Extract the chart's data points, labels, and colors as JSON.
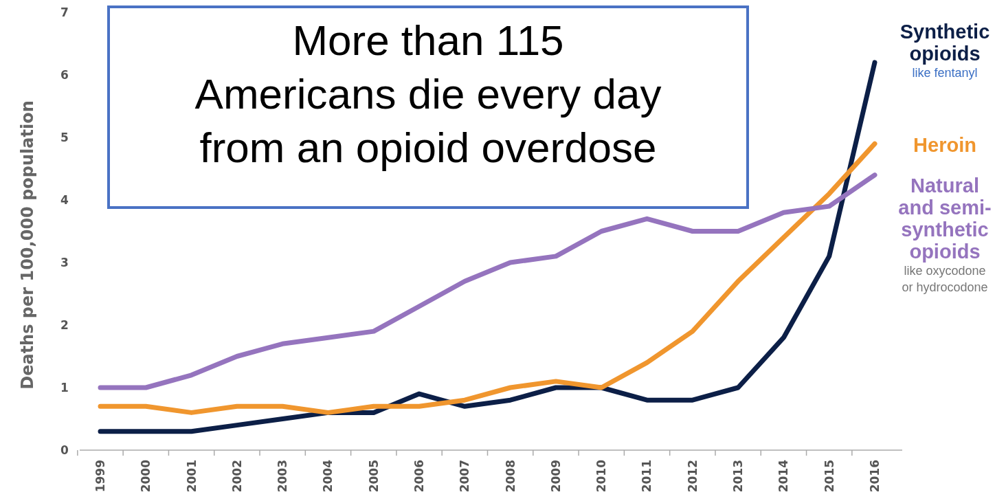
{
  "chart_data": {
    "type": "line",
    "ylabel": "Deaths per 100,000 population",
    "categories": [
      "1999",
      "2000",
      "2001",
      "2002",
      "2003",
      "2004",
      "2005",
      "2006",
      "2007",
      "2008",
      "2009",
      "2010",
      "2011",
      "2012",
      "2013",
      "2014",
      "2015",
      "2016"
    ],
    "series": [
      {
        "name": "Synthetic opioids",
        "color": "#0c1f47",
        "values": [
          0.3,
          0.3,
          0.3,
          0.4,
          0.5,
          0.6,
          0.6,
          0.9,
          0.7,
          0.8,
          1.0,
          1.0,
          0.8,
          0.8,
          1.0,
          1.8,
          3.1,
          6.2
        ]
      },
      {
        "name": "Heroin",
        "color": "#f0962e",
        "values": [
          0.7,
          0.7,
          0.6,
          0.7,
          0.7,
          0.6,
          0.7,
          0.7,
          0.8,
          1.0,
          1.1,
          1.0,
          1.4,
          1.9,
          2.7,
          3.4,
          4.1,
          4.9
        ]
      },
      {
        "name": "Natural and semi-synthetic opioids",
        "color": "#9574be",
        "values": [
          1.0,
          1.0,
          1.2,
          1.5,
          1.7,
          1.8,
          1.9,
          2.3,
          2.7,
          3.0,
          3.1,
          3.5,
          3.7,
          3.5,
          3.5,
          3.8,
          3.9,
          4.4
        ]
      }
    ],
    "ylim": [
      0,
      7
    ],
    "yticks": [
      0,
      1,
      2,
      3,
      4,
      5,
      6,
      7
    ],
    "grid": false,
    "line_style": "solid",
    "marker": "none",
    "annotations": [
      "More than 115\nAmericans die every day\nfrom an opioid overdose",
      "like fentanyl",
      "like oxycodone or hydrocodone"
    ]
  }
}
